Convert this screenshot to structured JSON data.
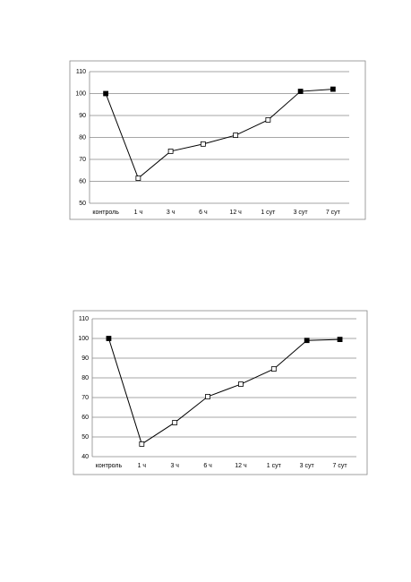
{
  "chart_data": [
    {
      "type": "line",
      "categories": [
        "контроль",
        "1 ч",
        "3 ч",
        "6 ч",
        "12 ч",
        "1 сут",
        "3 сут",
        "7 сут"
      ],
      "values": [
        100,
        61.4,
        73.7,
        77,
        81,
        88,
        101,
        102
      ],
      "marker_filled": [
        true,
        false,
        false,
        false,
        false,
        false,
        true,
        true
      ],
      "color": "#000000",
      "ylim": [
        50,
        110
      ],
      "yticks": [
        50,
        60,
        70,
        80,
        90,
        100,
        110
      ],
      "grid": true
    },
    {
      "type": "line",
      "categories": [
        "контроль",
        "1 ч",
        "3 ч",
        "6 ч",
        "12 ч",
        "1 сут",
        "3 сут",
        "7 сут"
      ],
      "values": [
        100,
        46.4,
        57.3,
        70.5,
        76.8,
        84.5,
        99,
        99.5
      ],
      "marker_filled": [
        true,
        false,
        false,
        false,
        false,
        false,
        true,
        true
      ],
      "color": "#000000",
      "ylim": [
        40,
        110
      ],
      "yticks": [
        40,
        50,
        60,
        70,
        80,
        90,
        100,
        110
      ],
      "grid": true
    }
  ]
}
